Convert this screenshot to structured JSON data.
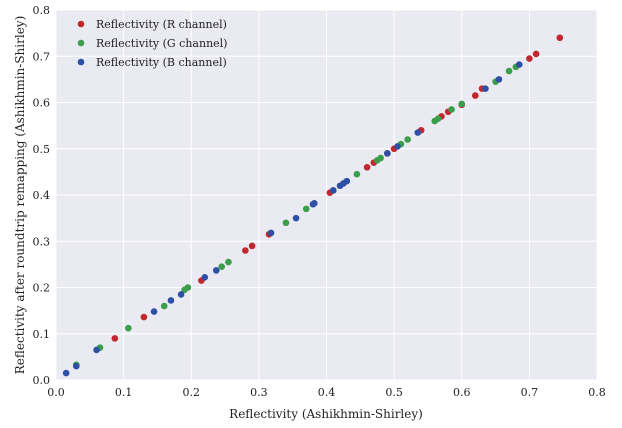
{
  "chart_data": {
    "type": "scatter",
    "xlabel": "Reflectivity (Ashikhmin-Shirley)",
    "ylabel": "Reflectivity after roundtrip remapping (Ashikhmin-Shirley)",
    "xlim": [
      0.0,
      0.8
    ],
    "ylim": [
      0.0,
      0.8
    ],
    "xticks": [
      "0.0",
      "0.1",
      "0.2",
      "0.3",
      "0.4",
      "0.5",
      "0.6",
      "0.7",
      "0.8"
    ],
    "yticks": [
      "0.0",
      "0.1",
      "0.2",
      "0.3",
      "0.4",
      "0.5",
      "0.6",
      "0.7",
      "0.8"
    ],
    "grid": true,
    "legend_position": "top-left",
    "series": [
      {
        "name": "Reflectivity (R channel)",
        "color": "#c0282d",
        "points": [
          [
            0.087,
            0.09
          ],
          [
            0.13,
            0.136
          ],
          [
            0.215,
            0.215
          ],
          [
            0.28,
            0.28
          ],
          [
            0.29,
            0.29
          ],
          [
            0.315,
            0.315
          ],
          [
            0.405,
            0.405
          ],
          [
            0.46,
            0.46
          ],
          [
            0.47,
            0.47
          ],
          [
            0.49,
            0.49
          ],
          [
            0.5,
            0.5
          ],
          [
            0.54,
            0.54
          ],
          [
            0.57,
            0.57
          ],
          [
            0.58,
            0.58
          ],
          [
            0.6,
            0.595
          ],
          [
            0.62,
            0.615
          ],
          [
            0.63,
            0.63
          ],
          [
            0.7,
            0.695
          ],
          [
            0.71,
            0.705
          ],
          [
            0.745,
            0.74
          ]
        ]
      },
      {
        "name": "Reflectivity (G channel)",
        "color": "#3a9e4a",
        "points": [
          [
            0.03,
            0.033
          ],
          [
            0.065,
            0.07
          ],
          [
            0.107,
            0.112
          ],
          [
            0.16,
            0.16
          ],
          [
            0.19,
            0.195
          ],
          [
            0.195,
            0.2
          ],
          [
            0.245,
            0.245
          ],
          [
            0.255,
            0.255
          ],
          [
            0.34,
            0.34
          ],
          [
            0.37,
            0.37
          ],
          [
            0.41,
            0.41
          ],
          [
            0.445,
            0.445
          ],
          [
            0.475,
            0.475
          ],
          [
            0.48,
            0.48
          ],
          [
            0.51,
            0.51
          ],
          [
            0.52,
            0.52
          ],
          [
            0.56,
            0.56
          ],
          [
            0.565,
            0.565
          ],
          [
            0.585,
            0.585
          ],
          [
            0.6,
            0.597
          ],
          [
            0.65,
            0.645
          ],
          [
            0.67,
            0.668
          ],
          [
            0.68,
            0.677
          ]
        ]
      },
      {
        "name": "Reflectivity (B channel)",
        "color": "#2e50a4",
        "points": [
          [
            0.015,
            0.015
          ],
          [
            0.03,
            0.03
          ],
          [
            0.06,
            0.065
          ],
          [
            0.145,
            0.148
          ],
          [
            0.17,
            0.172
          ],
          [
            0.185,
            0.185
          ],
          [
            0.22,
            0.222
          ],
          [
            0.237,
            0.237
          ],
          [
            0.318,
            0.318
          ],
          [
            0.355,
            0.35
          ],
          [
            0.38,
            0.38
          ],
          [
            0.382,
            0.382
          ],
          [
            0.41,
            0.41
          ],
          [
            0.42,
            0.42
          ],
          [
            0.425,
            0.425
          ],
          [
            0.43,
            0.43
          ],
          [
            0.49,
            0.49
          ],
          [
            0.505,
            0.505
          ],
          [
            0.535,
            0.535
          ],
          [
            0.635,
            0.63
          ],
          [
            0.655,
            0.65
          ],
          [
            0.685,
            0.682
          ]
        ]
      }
    ]
  }
}
